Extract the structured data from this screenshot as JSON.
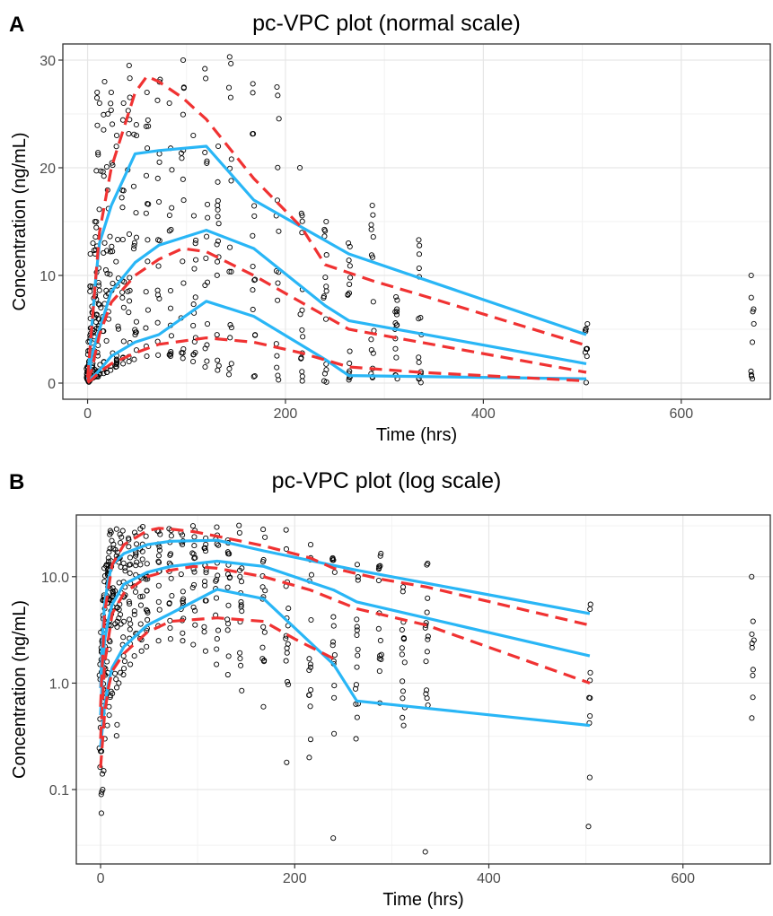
{
  "chart_data": [
    {
      "panel_label": "A",
      "type": "scatter",
      "title": "pc-VPC plot (normal scale)",
      "xlabel": "Time (hrs)",
      "ylabel": "Concentration (ng/mL)",
      "xlim": [
        -25,
        690
      ],
      "ylim": [
        -1.5,
        31.5
      ],
      "yscale": "linear",
      "xticks": [
        0,
        200,
        400,
        600
      ],
      "xtick_labels": [
        "0",
        "200",
        "400",
        "600"
      ],
      "yticks": [
        0,
        10,
        20,
        30
      ],
      "ytick_labels": [
        "0",
        "10",
        "20",
        "30"
      ],
      "grid": true,
      "legend": "none",
      "colors": {
        "observed_percentile": "#29b6f6",
        "predicted_percentile": "#f03232",
        "points": "#000000"
      },
      "observed_lines": [
        {
          "x": [
            0,
            2,
            4,
            8,
            12,
            24,
            48,
            72,
            120,
            168,
            264,
            504
          ],
          "y": [
            0.4,
            2.5,
            5.0,
            9.5,
            13.0,
            16.5,
            21.3,
            21.6,
            22.0,
            17.0,
            12.0,
            4.5
          ]
        },
        {
          "x": [
            0,
            2,
            4,
            8,
            12,
            24,
            48,
            72,
            120,
            168,
            240,
            264,
            504
          ],
          "y": [
            0.3,
            1.0,
            2.5,
            3.8,
            5.0,
            8.5,
            11.2,
            12.8,
            14.2,
            12.5,
            7.2,
            5.8,
            1.8
          ]
        },
        {
          "x": [
            0,
            2,
            4,
            8,
            12,
            24,
            48,
            72,
            120,
            168,
            240,
            264,
            504
          ],
          "y": [
            0.1,
            0.3,
            0.5,
            0.8,
            1.2,
            2.5,
            3.8,
            4.5,
            7.6,
            6.2,
            2.2,
            0.7,
            0.4
          ]
        }
      ],
      "predicted_lines": [
        {
          "x": [
            0,
            4,
            12,
            24,
            48,
            60,
            72,
            96,
            120,
            168,
            216,
            240,
            288,
            336,
            504
          ],
          "y": [
            0.5,
            5.0,
            14.0,
            20.0,
            27.0,
            28.5,
            28.0,
            26.5,
            24.5,
            19.0,
            14.5,
            11.0,
            9.5,
            8.2,
            3.5
          ]
        },
        {
          "x": [
            0,
            4,
            12,
            24,
            48,
            72,
            96,
            120,
            168,
            216,
            264,
            336,
            504
          ],
          "y": [
            0.2,
            1.2,
            4.5,
            7.5,
            10.0,
            11.5,
            12.5,
            12.2,
            10.0,
            7.5,
            5.0,
            3.8,
            1.0
          ]
        },
        {
          "x": [
            0,
            4,
            12,
            24,
            48,
            72,
            120,
            168,
            216,
            264,
            336,
            504
          ],
          "y": [
            0.05,
            0.3,
            1.0,
            1.8,
            2.8,
            3.6,
            4.2,
            3.8,
            2.8,
            1.5,
            1.0,
            0.2
          ]
        }
      ],
      "observed_points_x": [
        0,
        1,
        2,
        3,
        4,
        6,
        8,
        10,
        12,
        16,
        20,
        24,
        30,
        36,
        42,
        48,
        60,
        72,
        84,
        96,
        108,
        120,
        132,
        144,
        168,
        192,
        216,
        240,
        264,
        288,
        312,
        336,
        504,
        672
      ],
      "point_bands": [
        {
          "min": 0.1,
          "max": 1.5
        },
        {
          "min": 0.2,
          "max": 3
        },
        {
          "min": 0.3,
          "max": 6
        },
        {
          "min": 0.3,
          "max": 9
        },
        {
          "min": 0.4,
          "max": 12
        },
        {
          "min": 0.5,
          "max": 13
        },
        {
          "min": 0.6,
          "max": 15
        },
        {
          "min": 0.6,
          "max": 27
        },
        {
          "min": 0.8,
          "max": 26
        },
        {
          "min": 0.9,
          "max": 28
        },
        {
          "min": 1.0,
          "max": 25
        },
        {
          "min": 1.2,
          "max": 27
        },
        {
          "min": 1.5,
          "max": 23
        },
        {
          "min": 1.8,
          "max": 26
        },
        {
          "min": 2.0,
          "max": 29.5
        },
        {
          "min": 2.2,
          "max": 24
        },
        {
          "min": 2.5,
          "max": 27
        },
        {
          "min": 2.6,
          "max": 28.2
        },
        {
          "min": 2.5,
          "max": 26
        },
        {
          "min": 2.3,
          "max": 30
        },
        {
          "min": 2.0,
          "max": 23
        },
        {
          "min": 1.5,
          "max": 29.2
        },
        {
          "min": 1.2,
          "max": 22
        },
        {
          "min": 0.8,
          "max": 30.3
        },
        {
          "min": 0.6,
          "max": 27.8
        },
        {
          "min": 0.3,
          "max": 27.5
        },
        {
          "min": 0.2,
          "max": 20
        },
        {
          "min": 0.1,
          "max": 15
        },
        {
          "min": 0.3,
          "max": 13
        },
        {
          "min": 0.5,
          "max": 16.5
        },
        {
          "min": 0.4,
          "max": 8
        },
        {
          "min": 0.05,
          "max": 13.3
        },
        {
          "min": 0.05,
          "max": 5.5
        },
        {
          "min": 0.4,
          "max": 10
        }
      ]
    },
    {
      "panel_label": "B",
      "type": "scatter",
      "title": "pc-VPC plot (log scale)",
      "xlabel": "Time (hrs)",
      "ylabel": "Concentration (ng/mL)",
      "xlim": [
        -25,
        690
      ],
      "ylim": [
        0.02,
        38
      ],
      "yscale": "log",
      "xticks": [
        0,
        200,
        400,
        600
      ],
      "xtick_labels": [
        "0",
        "200",
        "400",
        "600"
      ],
      "yticks": [
        0.1,
        1,
        10
      ],
      "ytick_labels": [
        "0.1",
        "1.0",
        "10.0"
      ],
      "grid": true,
      "legend": "none",
      "colors": {
        "observed_percentile": "#29b6f6",
        "predicted_percentile": "#f03232",
        "points": "#000000"
      },
      "observed_lines": [
        {
          "x": [
            0,
            2,
            4,
            8,
            12,
            24,
            48,
            72,
            120,
            168,
            264,
            504
          ],
          "y": [
            0.9,
            2.8,
            5.5,
            9.5,
            13.0,
            16.5,
            20.0,
            21.5,
            22.0,
            17.5,
            11.5,
            4.5
          ]
        },
        {
          "x": [
            0,
            2,
            4,
            8,
            12,
            24,
            48,
            72,
            120,
            168,
            240,
            264,
            504
          ],
          "y": [
            0.5,
            1.2,
            2.5,
            4.0,
            5.5,
            8.5,
            11.0,
            12.5,
            14.0,
            12.5,
            7.5,
            5.8,
            1.8
          ]
        },
        {
          "x": [
            0,
            4,
            8,
            12,
            24,
            48,
            72,
            120,
            168,
            240,
            264,
            504
          ],
          "y": [
            0.25,
            0.6,
            1.0,
            1.4,
            2.2,
            3.5,
            4.5,
            7.6,
            6.2,
            1.5,
            0.68,
            0.4
          ]
        }
      ],
      "predicted_lines": [
        {
          "x": [
            0,
            4,
            12,
            24,
            48,
            60,
            72,
            96,
            120,
            168,
            216,
            240,
            288,
            336,
            504
          ],
          "y": [
            0.6,
            4.5,
            13.0,
            20.0,
            27.0,
            28.5,
            28.0,
            26.5,
            24.0,
            19.5,
            15.0,
            12.0,
            9.5,
            8.0,
            3.5
          ]
        },
        {
          "x": [
            0,
            4,
            12,
            24,
            48,
            72,
            96,
            120,
            168,
            216,
            264,
            336,
            504
          ],
          "y": [
            0.3,
            1.5,
            4.5,
            7.0,
            10.0,
            11.5,
            12.5,
            12.0,
            10.0,
            7.5,
            5.0,
            3.5,
            1.0
          ]
        },
        {
          "x": [
            0,
            4,
            8,
            12,
            24,
            48,
            72,
            120,
            168,
            200,
            240
          ],
          "y": [
            0.16,
            0.5,
            0.9,
            1.3,
            1.9,
            3.0,
            3.8,
            4.1,
            3.8,
            2.6,
            1.7
          ]
        }
      ],
      "observed_points_x": [
        0,
        1,
        2,
        3,
        4,
        6,
        8,
        10,
        12,
        16,
        20,
        24,
        30,
        36,
        42,
        48,
        60,
        72,
        84,
        96,
        108,
        120,
        132,
        144,
        168,
        192,
        216,
        240,
        264,
        288,
        312,
        336,
        504,
        672
      ],
      "point_bands": [
        {
          "min": 0.06,
          "max": 1.5
        },
        {
          "min": 0.09,
          "max": 3
        },
        {
          "min": 0.1,
          "max": 6
        },
        {
          "min": 0.15,
          "max": 9
        },
        {
          "min": 0.3,
          "max": 12
        },
        {
          "min": 0.4,
          "max": 13
        },
        {
          "min": 0.5,
          "max": 15
        },
        {
          "min": 0.6,
          "max": 27
        },
        {
          "min": 0.8,
          "max": 26
        },
        {
          "min": 0.32,
          "max": 28
        },
        {
          "min": 1.0,
          "max": 25
        },
        {
          "min": 1.2,
          "max": 27
        },
        {
          "min": 1.5,
          "max": 23
        },
        {
          "min": 1.8,
          "max": 26
        },
        {
          "min": 2.0,
          "max": 29.5
        },
        {
          "min": 2.2,
          "max": 24
        },
        {
          "min": 2.5,
          "max": 27
        },
        {
          "min": 2.6,
          "max": 28.2
        },
        {
          "min": 2.5,
          "max": 26
        },
        {
          "min": 2.3,
          "max": 30
        },
        {
          "min": 2.0,
          "max": 23
        },
        {
          "min": 1.5,
          "max": 29.2
        },
        {
          "min": 1.2,
          "max": 22
        },
        {
          "min": 0.85,
          "max": 30.3
        },
        {
          "min": 0.6,
          "max": 27.8
        },
        {
          "min": 0.18,
          "max": 27.5
        },
        {
          "min": 0.2,
          "max": 20
        },
        {
          "min": 0.035,
          "max": 15
        },
        {
          "min": 0.3,
          "max": 13
        },
        {
          "min": 0.65,
          "max": 16.5
        },
        {
          "min": 0.4,
          "max": 8
        },
        {
          "min": 0.026,
          "max": 13.3
        },
        {
          "min": 0.045,
          "max": 5.5
        },
        {
          "min": 0.47,
          "max": 10
        }
      ]
    }
  ]
}
